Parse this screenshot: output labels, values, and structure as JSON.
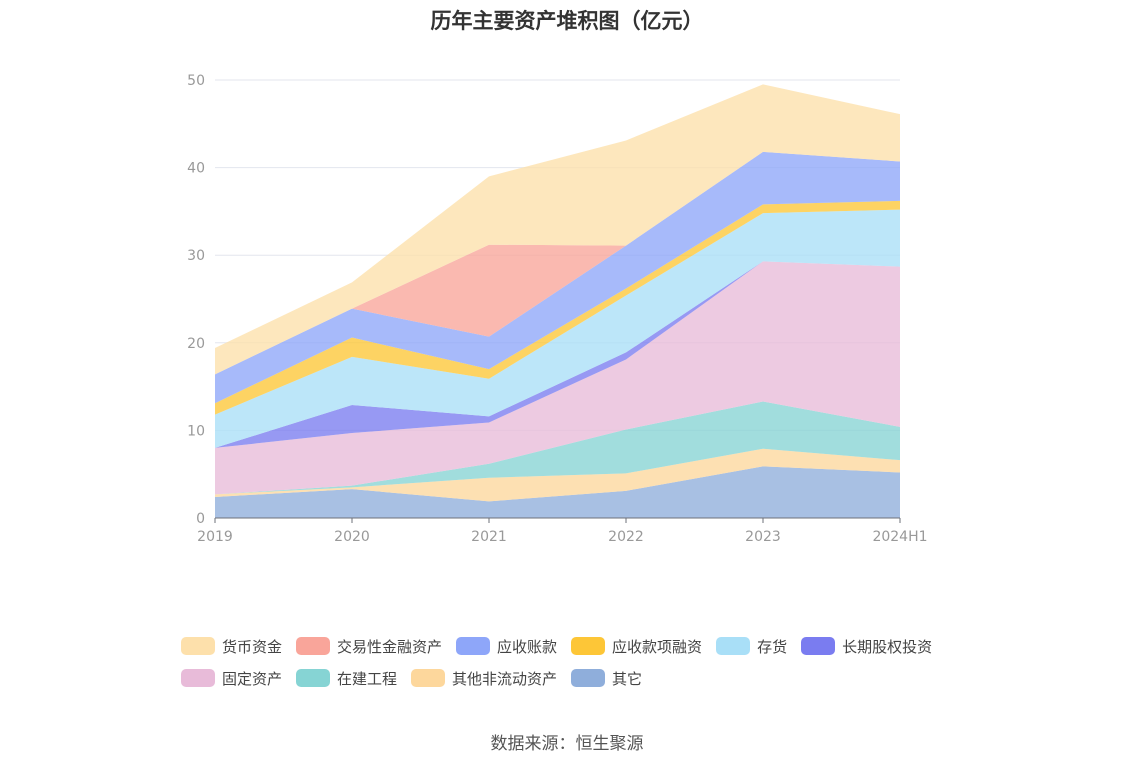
{
  "chart_data": {
    "type": "area",
    "stacked": true,
    "title": "历年主要资产堆积图（亿元）",
    "x": [
      "2019",
      "2020",
      "2021",
      "2022",
      "2023",
      "2024H1"
    ],
    "ylim": [
      0,
      50
    ],
    "yticks": [
      0,
      10,
      20,
      30,
      40,
      50
    ],
    "grid": true,
    "legend_position": "bottom",
    "series": [
      {
        "name": "其它",
        "color": "#8faedb",
        "values": [
          2.4,
          3.3,
          1.9,
          3.1,
          5.9,
          5.2
        ]
      },
      {
        "name": "其他非流动资产",
        "color": "#fdd79c",
        "values": [
          0.3,
          0.2,
          2.7,
          2.0,
          2.0,
          1.4
        ]
      },
      {
        "name": "在建工程",
        "color": "#86d4d4",
        "values": [
          0.0,
          0.2,
          1.6,
          5.0,
          5.4,
          3.8
        ]
      },
      {
        "name": "固定资产",
        "color": "#e8bbd9",
        "values": [
          5.3,
          6.0,
          4.7,
          8.0,
          16.0,
          18.3
        ]
      },
      {
        "name": "长期股权投资",
        "color": "#7a7cf0",
        "values": [
          0.0,
          3.2,
          0.7,
          0.8,
          0.0,
          0.0
        ]
      },
      {
        "name": "存货",
        "color": "#a9dff7",
        "values": [
          3.8,
          5.5,
          4.3,
          6.5,
          5.5,
          6.5
        ]
      },
      {
        "name": "应收款项融资",
        "color": "#fdc637",
        "values": [
          1.3,
          2.2,
          1.1,
          0.8,
          1.0,
          1.0
        ]
      },
      {
        "name": "应收账款",
        "color": "#8ea6f9",
        "values": [
          3.3,
          3.3,
          3.7,
          4.9,
          6.0,
          4.5
        ]
      },
      {
        "name": "交易性金融资产",
        "color": "#f9a59a",
        "values": [
          0.0,
          0.0,
          10.5,
          0.0,
          0.0,
          0.0
        ]
      },
      {
        "name": "货币资金",
        "color": "#fde0ab",
        "values": [
          3.0,
          3.0,
          7.8,
          12.0,
          7.7,
          5.4
        ]
      }
    ]
  },
  "legend": {
    "row1": [
      {
        "label": "货币资金",
        "color": "#fde0ab"
      },
      {
        "label": "交易性金融资产",
        "color": "#f9a59a"
      },
      {
        "label": "应收账款",
        "color": "#8ea6f9"
      },
      {
        "label": "应收款项融资",
        "color": "#fdc637"
      },
      {
        "label": "存货",
        "color": "#a9dff7"
      },
      {
        "label": "长期股权投资",
        "color": "#7a7cf0"
      }
    ],
    "row2": [
      {
        "label": "固定资产",
        "color": "#e8bbd9"
      },
      {
        "label": "在建工程",
        "color": "#86d4d4"
      },
      {
        "label": "其他非流动资产",
        "color": "#fdd79c"
      },
      {
        "label": "其它",
        "color": "#8faedb"
      }
    ]
  },
  "source": "数据来源：恒生聚源"
}
